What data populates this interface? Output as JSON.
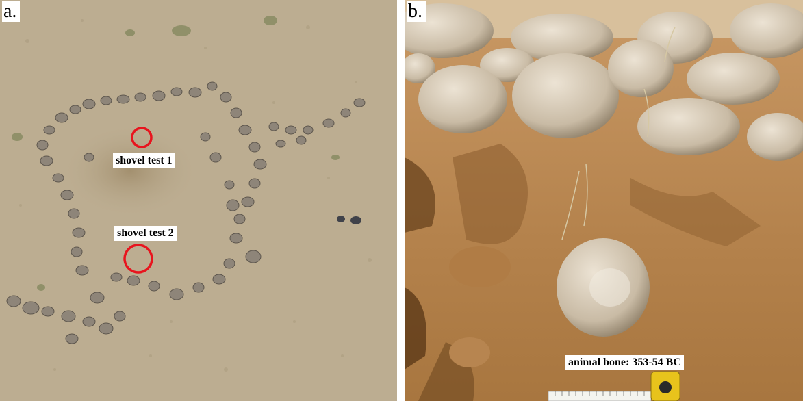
{
  "panels": {
    "a": {
      "label": "a."
    },
    "b": {
      "label": "b."
    }
  },
  "annotations": {
    "shovel_test_1": "shovel test 1",
    "shovel_test_2": "shovel test 2",
    "animal_bone": "animal bone: 353-54 BC"
  },
  "colors": {
    "marker_circle": "#e8141e",
    "ground_aerial": "#b9a98c",
    "soil_trench": "#b98a55"
  }
}
